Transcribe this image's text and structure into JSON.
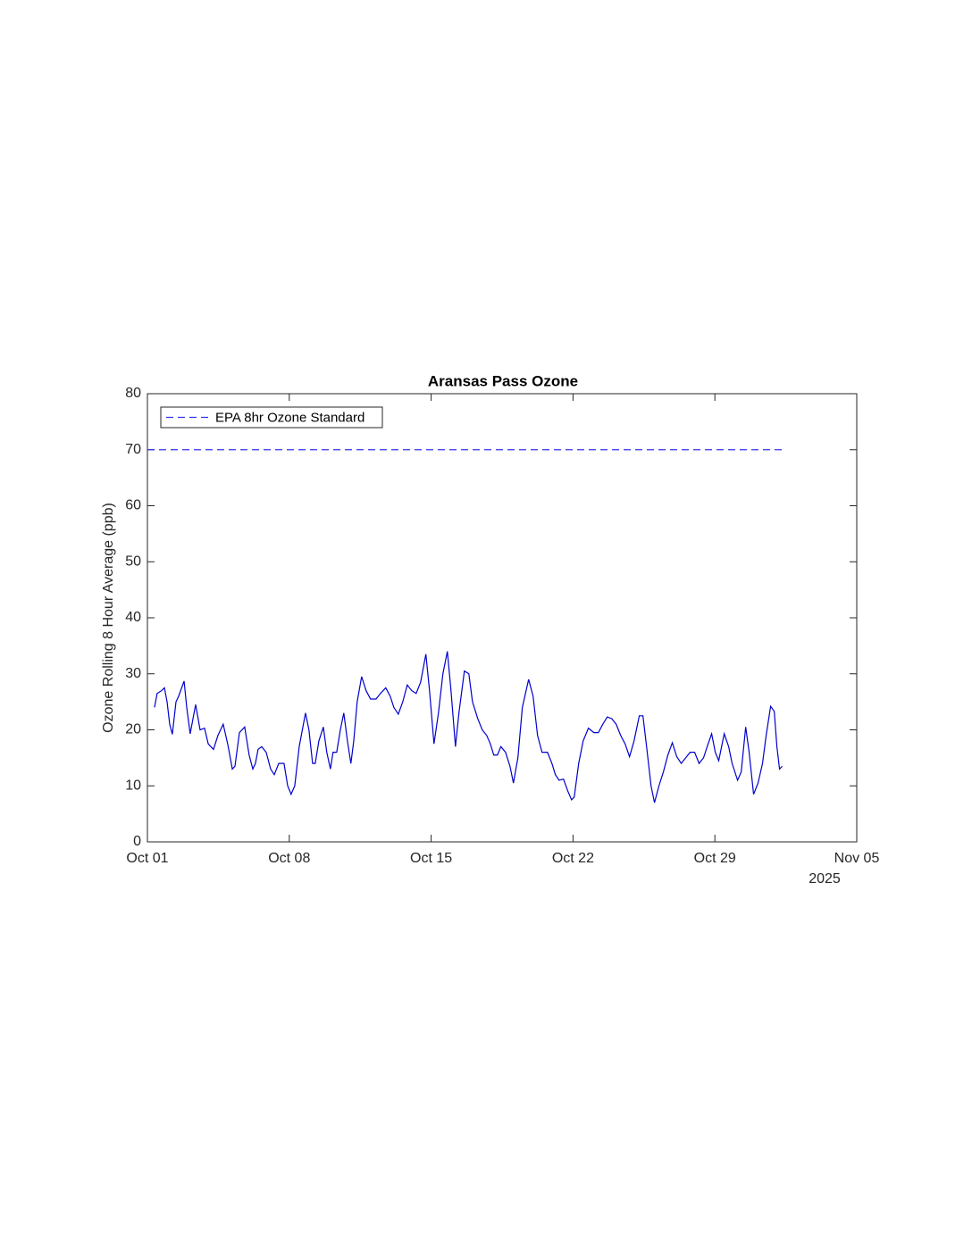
{
  "chart_data": {
    "type": "line",
    "title": "Aransas Pass Ozone",
    "y_label": "Ozone Rolling 8 Hour Average (ppb)",
    "x_secondary_label": "2025",
    "xlim": [
      0,
      35
    ],
    "xticks": [
      {
        "value": 0,
        "label": "Oct 01"
      },
      {
        "value": 7,
        "label": "Oct 08"
      },
      {
        "value": 14,
        "label": "Oct 15"
      },
      {
        "value": 21,
        "label": "Oct 22"
      },
      {
        "value": 28,
        "label": "Oct 29"
      },
      {
        "value": 35,
        "label": "Nov 05"
      }
    ],
    "ylim": [
      0,
      80
    ],
    "yticks": [
      0,
      10,
      20,
      30,
      40,
      50,
      60,
      70,
      80
    ],
    "legend": "top-left",
    "series": [
      {
        "color": "#0000cc",
        "style": "solid",
        "x": [
          0.35,
          0.48,
          0.7,
          0.84,
          0.97,
          1.1,
          1.23,
          1.41,
          1.54,
          1.81,
          1.94,
          2.11,
          2.38,
          2.6,
          2.82,
          3.0,
          3.26,
          3.48,
          3.74,
          3.96,
          4.19,
          4.32,
          4.54,
          4.8,
          5.02,
          5.2,
          5.33,
          5.46,
          5.64,
          5.86,
          6.08,
          6.26,
          6.48,
          6.74,
          6.92,
          7.09,
          7.27,
          7.49,
          7.8,
          7.97,
          8.15,
          8.28,
          8.46,
          8.68,
          8.85,
          9.03,
          9.16,
          9.34,
          9.52,
          9.69,
          9.87,
          10.04,
          10.18,
          10.35,
          10.57,
          10.79,
          11.01,
          11.28,
          11.5,
          11.76,
          11.98,
          12.16,
          12.38,
          12.6,
          12.82,
          13.04,
          13.26,
          13.48,
          13.74,
          13.92,
          14.14,
          14.36,
          14.58,
          14.8,
          14.98,
          15.2,
          15.37,
          15.64,
          15.86,
          16.04,
          16.3,
          16.52,
          16.74,
          16.92,
          17.09,
          17.27,
          17.44,
          17.67,
          17.89,
          18.06,
          18.28,
          18.5,
          18.81,
          19.03,
          19.25,
          19.47,
          19.74,
          19.96,
          20.13,
          20.31,
          20.53,
          20.75,
          20.93,
          21.06,
          21.28,
          21.5,
          21.76,
          22.03,
          22.25,
          22.47,
          22.69,
          22.91,
          23.13,
          23.35,
          23.57,
          23.79,
          24.01,
          24.27,
          24.45,
          24.63,
          24.85,
          25.02,
          25.24,
          25.46,
          25.68,
          25.9,
          26.12,
          26.34,
          26.56,
          26.78,
          27.0,
          27.22,
          27.44,
          27.62,
          27.84,
          28.02,
          28.19,
          28.46,
          28.68,
          28.85,
          29.12,
          29.3,
          29.52,
          29.69,
          29.91,
          30.13,
          30.35,
          30.53,
          30.75,
          30.93,
          31.06,
          31.19,
          31.32
        ],
        "values": [
          24,
          26.5,
          27,
          27.5,
          25,
          21,
          19.2,
          25,
          26,
          28.7,
          24,
          19.3,
          24.5,
          20,
          20.3,
          17.5,
          16.5,
          19,
          21,
          17.5,
          13,
          13.5,
          19.5,
          20.5,
          15.5,
          13,
          14,
          16.5,
          17,
          16,
          13,
          12,
          14,
          14,
          10,
          8.5,
          10,
          17,
          23,
          20,
          14,
          14,
          18,
          20.5,
          16,
          13,
          16,
          16,
          20,
          23,
          18,
          14,
          18,
          25,
          29.5,
          27,
          25.5,
          25.5,
          26.5,
          27.5,
          26,
          24,
          22.8,
          25,
          28,
          27,
          26.5,
          28.5,
          33.5,
          27,
          17.5,
          23,
          30,
          34,
          27,
          17,
          23,
          30.5,
          30,
          25,
          22,
          20,
          19,
          17.5,
          15.5,
          15.5,
          17,
          16,
          13.5,
          10.5,
          15,
          24,
          29,
          26,
          19,
          16,
          16,
          14,
          12,
          11,
          11.2,
          9,
          7.5,
          8,
          14,
          18,
          20.3,
          19.5,
          19.5,
          21,
          22.3,
          22,
          21,
          19,
          17.5,
          15.2,
          18,
          22.5,
          22.5,
          17,
          10,
          7,
          10,
          12.5,
          15.5,
          17.7,
          15.2,
          14,
          15,
          16,
          16,
          14,
          15,
          17,
          19.3,
          16,
          14.5,
          19.3,
          17,
          14,
          11,
          12.5,
          20.5,
          16,
          8.5,
          10.5,
          14,
          19,
          24.2,
          23.3,
          17,
          13,
          13.5
        ]
      },
      {
        "name": "EPA 8hr Ozone Standard",
        "color": "#3333ee",
        "style": "dashed",
        "x": [
          0,
          31.32
        ],
        "values": [
          70,
          70
        ]
      }
    ]
  }
}
